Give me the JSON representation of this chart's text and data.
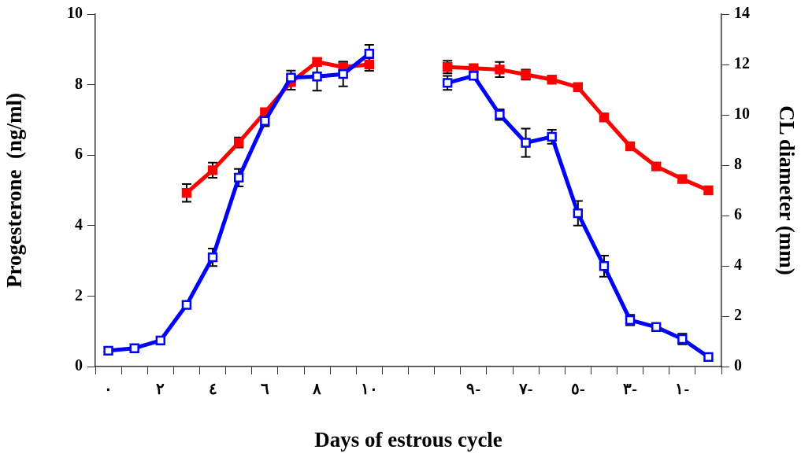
{
  "chart_data": {
    "type": "line",
    "xlabel": "Days of estrous cycle",
    "ylabel": "Progesterone  (ng/ml)",
    "y2label": "CL diameter (mm)",
    "categories": [
      "٠",
      null,
      "٢",
      null,
      "٤",
      null,
      "٦",
      null,
      "٨",
      null,
      "١٠",
      null,
      null,
      null,
      "٩-",
      null,
      "٧-",
      null,
      "٥-",
      null,
      "٣-",
      null,
      "١-",
      null
    ],
    "ylim": [
      0,
      10
    ],
    "yticks": [
      0,
      2,
      4,
      6,
      8,
      10
    ],
    "y2lim": [
      0,
      14
    ],
    "y2ticks": [
      0,
      2,
      4,
      6,
      8,
      10,
      12,
      14
    ],
    "marker": "square",
    "line_style": "solid",
    "legend": false,
    "series": [
      {
        "color": "#0000ff",
        "values": [
          0.45,
          0.52,
          0.74,
          1.75,
          3.1,
          5.36,
          6.97,
          8.2,
          8.23,
          8.3,
          8.88,
          null,
          null,
          8.05,
          8.25,
          7.15,
          6.35,
          6.52,
          4.35,
          2.85,
          1.32,
          1.12,
          0.78,
          0.27
        ],
        "errors": [
          null,
          null,
          null,
          null,
          0.25,
          0.25,
          0.15,
          0.2,
          0.4,
          0.35,
          0.25,
          null,
          null,
          0.2,
          null,
          0.15,
          0.4,
          0.2,
          0.35,
          0.3,
          0.15,
          null,
          0.15,
          null
        ]
      },
      {
        "color": "#ff0000",
        "axis": "y2",
        "values": [
          null,
          null,
          null,
          6.9,
          7.8,
          8.9,
          10.1,
          11.3,
          12.1,
          11.9,
          12,
          null,
          null,
          11.9,
          11.85,
          11.8,
          11.6,
          11.4,
          11.1,
          9.9,
          8.75,
          7.95,
          7.45,
          7
        ],
        "errors": [
          null,
          null,
          null,
          0.35,
          0.3,
          0.2,
          null,
          0.3,
          0.15,
          0.2,
          0.25,
          null,
          null,
          0.25,
          null,
          0.3,
          0.2,
          null,
          null,
          null,
          null,
          null,
          null,
          null
        ]
      }
    ]
  }
}
